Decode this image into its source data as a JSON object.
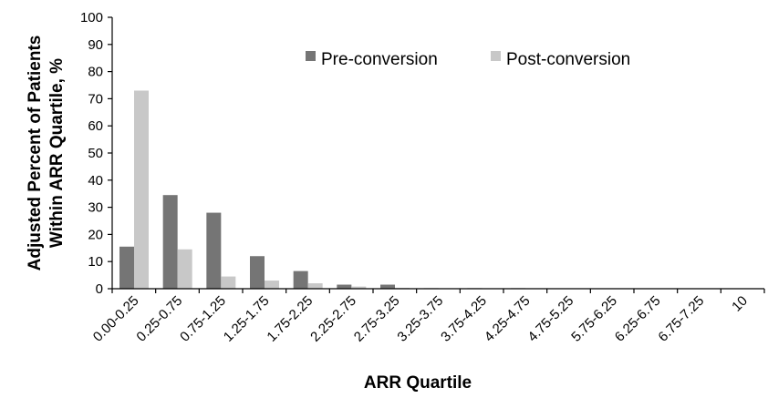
{
  "chart_data": {
    "type": "bar",
    "xlabel": "ARR Quartile",
    "ylabel": "Adjusted Percent of Patients Within ARR Quartile, %",
    "ylabel_lines": [
      "Adjusted Percent of Patients",
      "Within ARR Quartile, %"
    ],
    "ylim": [
      0,
      100
    ],
    "yticks": [
      0,
      10,
      20,
      30,
      40,
      50,
      60,
      70,
      80,
      90,
      100
    ],
    "grid": false,
    "legend_position": "top-center",
    "categories": [
      "0.00-0.25",
      "0.25-0.75",
      "0.75-1.25",
      "1.25-1.75",
      "1.75-2.25",
      "2.25-2.75",
      "2.75-3.25",
      "3.25-3.75",
      "3.75-4.25",
      "4.25-4.75",
      "4.75-5.25",
      "5.75-6.25",
      "6.25-6.75",
      "6.75-7.25",
      "10"
    ],
    "series": [
      {
        "name": "Pre-conversion",
        "color": "#757575",
        "values": [
          15.5,
          34.5,
          28,
          12,
          6.5,
          1.5,
          1.5,
          0.2,
          0.2,
          0.2,
          0.1,
          0.1,
          0.1,
          0.1,
          0.1
        ]
      },
      {
        "name": "Post-conversion",
        "color": "#c8c8c8",
        "values": [
          73,
          14.5,
          4.5,
          3,
          2,
          0.8,
          0.3,
          0.1,
          0.1,
          0.1,
          0.1,
          0.1,
          0.1,
          0.1,
          0.1
        ]
      }
    ]
  }
}
